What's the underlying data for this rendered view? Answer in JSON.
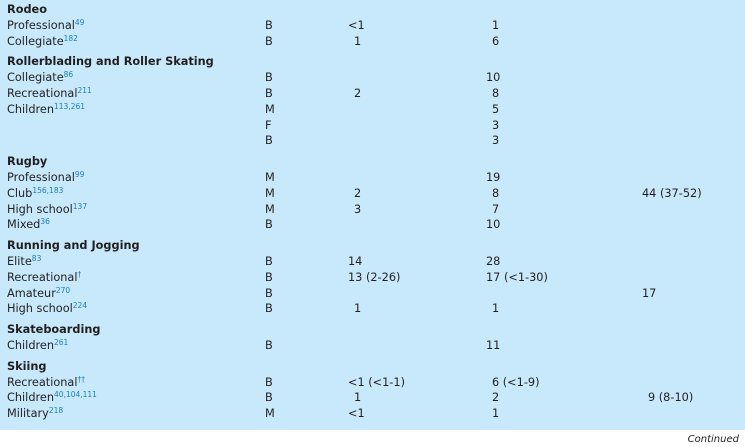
{
  "groups": [
    {
      "title": "Rodeo",
      "rows": [
        {
          "label": "Professional",
          "ref": "49",
          "sex": "B",
          "c1": "<1",
          "c2": "1",
          "c3": ""
        },
        {
          "label": "Collegiate",
          "ref": "182",
          "sex": "B",
          "c1": "1",
          "c2": "6",
          "c3": ""
        }
      ]
    },
    {
      "title": "Rollerblading and Roller Skating",
      "rows": [
        {
          "label": "Collegiate",
          "ref": "86",
          "sex": "B",
          "c1": "",
          "c2": "10",
          "c3": ""
        },
        {
          "label": "Recreational",
          "ref": "211",
          "sex": "B",
          "c1": "2",
          "c2": "8",
          "c3": ""
        },
        {
          "label": "Children",
          "ref": "113,261",
          "sex": "M",
          "c1": "",
          "c2": "5",
          "c3": ""
        },
        {
          "label": "",
          "ref": "",
          "sex": "F",
          "c1": "",
          "c2": "3",
          "c3": ""
        },
        {
          "label": "",
          "ref": "",
          "sex": "B",
          "c1": "",
          "c2": "3",
          "c3": ""
        }
      ]
    },
    {
      "title": "Rugby",
      "rows": [
        {
          "label": "Professional",
          "ref": "99",
          "sex": "M",
          "c1": "",
          "c2": "19",
          "c3": ""
        },
        {
          "label": "Club",
          "ref": "156,183",
          "sex": "M",
          "c1": "2",
          "c2": "8",
          "c3": "44 (37-52)"
        },
        {
          "label": "High school",
          "ref": "137",
          "sex": "M",
          "c1": "3",
          "c2": "7",
          "c3": ""
        },
        {
          "label": "Mixed",
          "ref": "36",
          "sex": "B",
          "c1": "",
          "c2": "10",
          "c3": ""
        }
      ]
    },
    {
      "title": "Running and Jogging",
      "rows": [
        {
          "label": "Elite",
          "ref": "83",
          "sex": "B",
          "c1": "14",
          "c2": "28",
          "c3": ""
        },
        {
          "label": "Recreational",
          "ref": "†",
          "sex": "B",
          "c1": "13 (2-26)",
          "c2": "17 (<1-30)",
          "c3": ""
        },
        {
          "label": "Amateur",
          "ref": "270",
          "sex": "B",
          "c1": "",
          "c2": "",
          "c3": "17"
        },
        {
          "label": "High school",
          "ref": "224",
          "sex": "B",
          "c1": "1",
          "c2": "1",
          "c3": ""
        }
      ]
    },
    {
      "title": "Skateboarding",
      "rows": [
        {
          "label": "Children",
          "ref": "261",
          "sex": "B",
          "c1": "",
          "c2": "11",
          "c3": ""
        }
      ]
    },
    {
      "title": "Skiing",
      "rows": [
        {
          "label": "Recreational",
          "ref": "††",
          "sex": "B",
          "c1": "<1 (<1-1)",
          "c2": "6 (<1-9)",
          "c3": ""
        },
        {
          "label": "Children",
          "ref": "40,104,111",
          "sex": "B",
          "c1": "1",
          "c2": "2",
          "c3": "9 (8-10)"
        },
        {
          "label": "Military",
          "ref": "218",
          "sex": "M",
          "c1": "<1",
          "c2": "1",
          "c3": ""
        }
      ]
    }
  ],
  "footer": {
    "continued": "Continued"
  },
  "colors": {
    "panel": "#c7e9fb",
    "ref": "#1a7fb5"
  }
}
